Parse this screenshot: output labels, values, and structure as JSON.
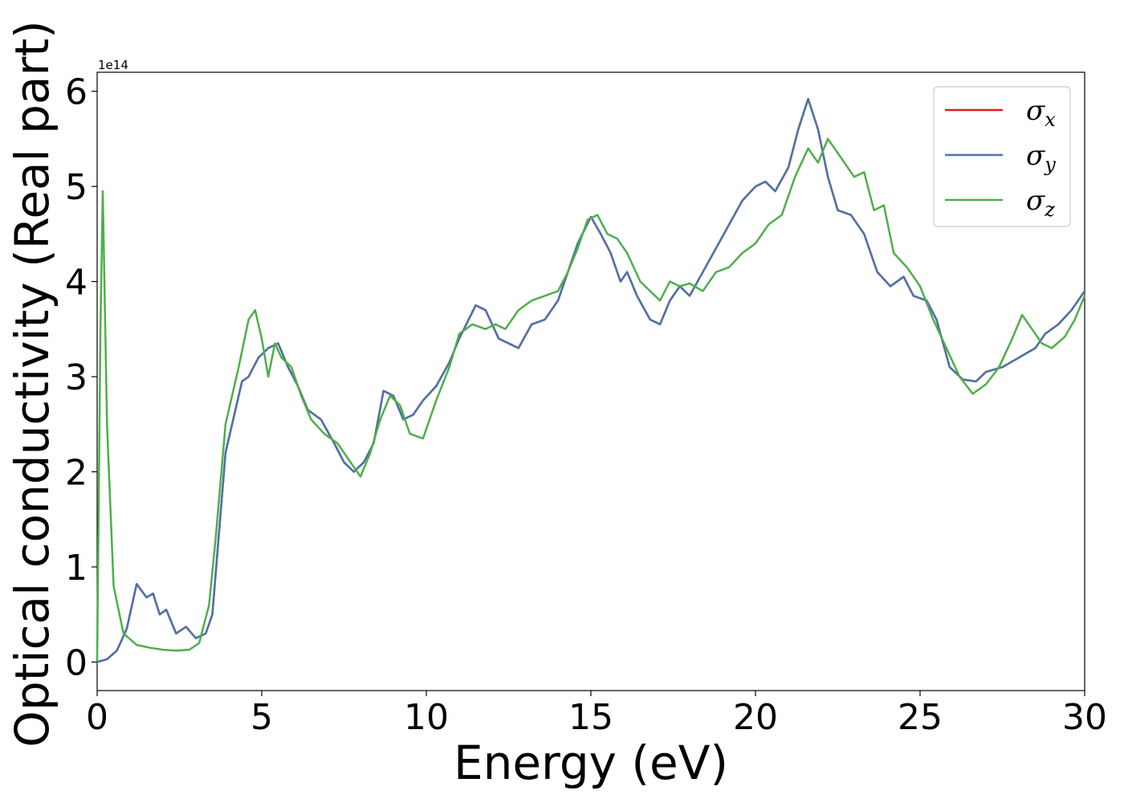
{
  "chart_data": {
    "type": "line",
    "title": "",
    "xlabel": "Energy (eV)",
    "ylabel": "Optical conductivity (Real part)",
    "y_offset_text": "1e14",
    "xlim": [
      0,
      30
    ],
    "ylim": [
      -0.3,
      6.2
    ],
    "x_ticks": [
      0,
      5,
      10,
      15,
      20,
      25,
      30
    ],
    "x_tick_labels": [
      "0",
      "5",
      "10",
      "15",
      "20",
      "25",
      "30"
    ],
    "y_ticks": [
      0,
      1,
      2,
      3,
      4,
      5,
      6
    ],
    "y_tick_labels": [
      "0",
      "1",
      "2",
      "3",
      "4",
      "5",
      "6"
    ],
    "grid": false,
    "legend_position": "top-right",
    "legend": [
      {
        "symbol": "σ",
        "subscript": "x",
        "color": "#e41a1c"
      },
      {
        "symbol": "σ",
        "subscript": "y",
        "color": "#4a74a8"
      },
      {
        "symbol": "σ",
        "subscript": "z",
        "color": "#4daf4a"
      }
    ],
    "series": [
      {
        "name": "σx",
        "color": "#e41a1c",
        "points": [
          [
            0,
            0
          ],
          [
            0.3,
            0.03
          ],
          [
            0.6,
            0.12
          ],
          [
            0.9,
            0.35
          ],
          [
            1.2,
            0.82
          ],
          [
            1.5,
            0.68
          ],
          [
            1.7,
            0.72
          ],
          [
            1.9,
            0.5
          ],
          [
            2.1,
            0.55
          ],
          [
            2.4,
            0.3
          ],
          [
            2.7,
            0.37
          ],
          [
            3.0,
            0.25
          ],
          [
            3.3,
            0.3
          ],
          [
            3.5,
            0.5
          ],
          [
            3.9,
            2.2
          ],
          [
            4.4,
            2.95
          ],
          [
            4.6,
            3.0
          ],
          [
            4.9,
            3.2
          ],
          [
            5.2,
            3.3
          ],
          [
            5.5,
            3.35
          ],
          [
            5.8,
            3.1
          ],
          [
            6.1,
            2.9
          ],
          [
            6.4,
            2.65
          ],
          [
            6.8,
            2.55
          ],
          [
            7.2,
            2.3
          ],
          [
            7.5,
            2.1
          ],
          [
            7.8,
            2.0
          ],
          [
            8.1,
            2.1
          ],
          [
            8.4,
            2.3
          ],
          [
            8.7,
            2.85
          ],
          [
            9.0,
            2.8
          ],
          [
            9.3,
            2.55
          ],
          [
            9.6,
            2.6
          ],
          [
            9.9,
            2.75
          ],
          [
            10.3,
            2.9
          ],
          [
            10.7,
            3.15
          ],
          [
            11.0,
            3.4
          ],
          [
            11.5,
            3.75
          ],
          [
            11.8,
            3.7
          ],
          [
            12.2,
            3.4
          ],
          [
            12.5,
            3.35
          ],
          [
            12.8,
            3.3
          ],
          [
            13.2,
            3.55
          ],
          [
            13.6,
            3.6
          ],
          [
            14.0,
            3.8
          ],
          [
            14.3,
            4.1
          ],
          [
            14.6,
            4.4
          ],
          [
            15.0,
            4.68
          ],
          [
            15.3,
            4.5
          ],
          [
            15.6,
            4.3
          ],
          [
            15.9,
            4.0
          ],
          [
            16.1,
            4.1
          ],
          [
            16.4,
            3.85
          ],
          [
            16.8,
            3.6
          ],
          [
            17.1,
            3.55
          ],
          [
            17.4,
            3.8
          ],
          [
            17.7,
            3.95
          ],
          [
            18.0,
            3.85
          ],
          [
            18.4,
            4.1
          ],
          [
            18.8,
            4.35
          ],
          [
            19.2,
            4.6
          ],
          [
            19.6,
            4.85
          ],
          [
            20.0,
            5.0
          ],
          [
            20.3,
            5.05
          ],
          [
            20.6,
            4.95
          ],
          [
            21.0,
            5.2
          ],
          [
            21.3,
            5.6
          ],
          [
            21.6,
            5.92
          ],
          [
            21.9,
            5.6
          ],
          [
            22.2,
            5.1
          ],
          [
            22.5,
            4.75
          ],
          [
            22.9,
            4.7
          ],
          [
            23.3,
            4.5
          ],
          [
            23.7,
            4.1
          ],
          [
            24.1,
            3.95
          ],
          [
            24.5,
            4.05
          ],
          [
            24.8,
            3.85
          ],
          [
            25.2,
            3.8
          ],
          [
            25.5,
            3.6
          ],
          [
            25.9,
            3.1
          ],
          [
            26.3,
            2.97
          ],
          [
            26.7,
            2.95
          ],
          [
            27.0,
            3.05
          ],
          [
            27.5,
            3.1
          ],
          [
            28.0,
            3.2
          ],
          [
            28.5,
            3.3
          ],
          [
            28.8,
            3.45
          ],
          [
            29.2,
            3.55
          ],
          [
            29.6,
            3.7
          ],
          [
            30.0,
            3.9
          ]
        ]
      },
      {
        "name": "σy",
        "color": "#4a74a8",
        "points": [
          [
            0,
            0
          ],
          [
            0.3,
            0.03
          ],
          [
            0.6,
            0.12
          ],
          [
            0.9,
            0.35
          ],
          [
            1.2,
            0.82
          ],
          [
            1.5,
            0.68
          ],
          [
            1.7,
            0.72
          ],
          [
            1.9,
            0.5
          ],
          [
            2.1,
            0.55
          ],
          [
            2.4,
            0.3
          ],
          [
            2.7,
            0.37
          ],
          [
            3.0,
            0.25
          ],
          [
            3.3,
            0.3
          ],
          [
            3.5,
            0.5
          ],
          [
            3.9,
            2.2
          ],
          [
            4.4,
            2.95
          ],
          [
            4.6,
            3.0
          ],
          [
            4.9,
            3.2
          ],
          [
            5.2,
            3.3
          ],
          [
            5.5,
            3.35
          ],
          [
            5.8,
            3.1
          ],
          [
            6.1,
            2.9
          ],
          [
            6.4,
            2.65
          ],
          [
            6.8,
            2.55
          ],
          [
            7.2,
            2.3
          ],
          [
            7.5,
            2.1
          ],
          [
            7.8,
            2.0
          ],
          [
            8.1,
            2.1
          ],
          [
            8.4,
            2.3
          ],
          [
            8.7,
            2.85
          ],
          [
            9.0,
            2.8
          ],
          [
            9.3,
            2.55
          ],
          [
            9.6,
            2.6
          ],
          [
            9.9,
            2.75
          ],
          [
            10.3,
            2.9
          ],
          [
            10.7,
            3.15
          ],
          [
            11.0,
            3.4
          ],
          [
            11.5,
            3.75
          ],
          [
            11.8,
            3.7
          ],
          [
            12.2,
            3.4
          ],
          [
            12.5,
            3.35
          ],
          [
            12.8,
            3.3
          ],
          [
            13.2,
            3.55
          ],
          [
            13.6,
            3.6
          ],
          [
            14.0,
            3.8
          ],
          [
            14.3,
            4.1
          ],
          [
            14.6,
            4.4
          ],
          [
            15.0,
            4.68
          ],
          [
            15.3,
            4.5
          ],
          [
            15.6,
            4.3
          ],
          [
            15.9,
            4.0
          ],
          [
            16.1,
            4.1
          ],
          [
            16.4,
            3.85
          ],
          [
            16.8,
            3.6
          ],
          [
            17.1,
            3.55
          ],
          [
            17.4,
            3.8
          ],
          [
            17.7,
            3.95
          ],
          [
            18.0,
            3.85
          ],
          [
            18.4,
            4.1
          ],
          [
            18.8,
            4.35
          ],
          [
            19.2,
            4.6
          ],
          [
            19.6,
            4.85
          ],
          [
            20.0,
            5.0
          ],
          [
            20.3,
            5.05
          ],
          [
            20.6,
            4.95
          ],
          [
            21.0,
            5.2
          ],
          [
            21.3,
            5.6
          ],
          [
            21.6,
            5.92
          ],
          [
            21.9,
            5.6
          ],
          [
            22.2,
            5.1
          ],
          [
            22.5,
            4.75
          ],
          [
            22.9,
            4.7
          ],
          [
            23.3,
            4.5
          ],
          [
            23.7,
            4.1
          ],
          [
            24.1,
            3.95
          ],
          [
            24.5,
            4.05
          ],
          [
            24.8,
            3.85
          ],
          [
            25.2,
            3.8
          ],
          [
            25.5,
            3.6
          ],
          [
            25.9,
            3.1
          ],
          [
            26.3,
            2.97
          ],
          [
            26.7,
            2.95
          ],
          [
            27.0,
            3.05
          ],
          [
            27.5,
            3.1
          ],
          [
            28.0,
            3.2
          ],
          [
            28.5,
            3.3
          ],
          [
            28.8,
            3.45
          ],
          [
            29.2,
            3.55
          ],
          [
            29.6,
            3.7
          ],
          [
            30.0,
            3.9
          ]
        ]
      },
      {
        "name": "σz",
        "color": "#4daf4a",
        "points": [
          [
            0,
            0
          ],
          [
            0.1,
            3.5
          ],
          [
            0.17,
            4.95
          ],
          [
            0.3,
            2.5
          ],
          [
            0.5,
            0.8
          ],
          [
            0.8,
            0.3
          ],
          [
            1.2,
            0.18
          ],
          [
            1.6,
            0.15
          ],
          [
            2.0,
            0.13
          ],
          [
            2.4,
            0.12
          ],
          [
            2.8,
            0.13
          ],
          [
            3.1,
            0.2
          ],
          [
            3.4,
            0.6
          ],
          [
            3.6,
            1.3
          ],
          [
            3.9,
            2.5
          ],
          [
            4.3,
            3.1
          ],
          [
            4.6,
            3.6
          ],
          [
            4.8,
            3.7
          ],
          [
            5.0,
            3.4
          ],
          [
            5.2,
            3.0
          ],
          [
            5.4,
            3.35
          ],
          [
            5.6,
            3.2
          ],
          [
            5.9,
            3.1
          ],
          [
            6.2,
            2.8
          ],
          [
            6.5,
            2.55
          ],
          [
            6.9,
            2.4
          ],
          [
            7.3,
            2.3
          ],
          [
            7.6,
            2.15
          ],
          [
            8.0,
            1.95
          ],
          [
            8.3,
            2.2
          ],
          [
            8.6,
            2.55
          ],
          [
            8.9,
            2.8
          ],
          [
            9.2,
            2.7
          ],
          [
            9.5,
            2.4
          ],
          [
            9.9,
            2.35
          ],
          [
            10.3,
            2.75
          ],
          [
            10.7,
            3.1
          ],
          [
            11.0,
            3.45
          ],
          [
            11.4,
            3.55
          ],
          [
            11.8,
            3.5
          ],
          [
            12.1,
            3.55
          ],
          [
            12.4,
            3.5
          ],
          [
            12.8,
            3.7
          ],
          [
            13.2,
            3.8
          ],
          [
            13.6,
            3.85
          ],
          [
            14.0,
            3.9
          ],
          [
            14.3,
            4.1
          ],
          [
            14.6,
            4.35
          ],
          [
            14.9,
            4.65
          ],
          [
            15.2,
            4.7
          ],
          [
            15.5,
            4.5
          ],
          [
            15.8,
            4.45
          ],
          [
            16.1,
            4.3
          ],
          [
            16.5,
            4.0
          ],
          [
            16.8,
            3.9
          ],
          [
            17.1,
            3.8
          ],
          [
            17.4,
            4.0
          ],
          [
            17.7,
            3.95
          ],
          [
            18.0,
            3.98
          ],
          [
            18.4,
            3.9
          ],
          [
            18.8,
            4.1
          ],
          [
            19.2,
            4.15
          ],
          [
            19.6,
            4.3
          ],
          [
            20.0,
            4.4
          ],
          [
            20.4,
            4.6
          ],
          [
            20.8,
            4.7
          ],
          [
            21.2,
            5.1
          ],
          [
            21.6,
            5.4
          ],
          [
            21.9,
            5.25
          ],
          [
            22.2,
            5.5
          ],
          [
            22.6,
            5.3
          ],
          [
            23.0,
            5.1
          ],
          [
            23.3,
            5.15
          ],
          [
            23.6,
            4.75
          ],
          [
            23.9,
            4.8
          ],
          [
            24.2,
            4.3
          ],
          [
            24.6,
            4.15
          ],
          [
            25.0,
            3.95
          ],
          [
            25.4,
            3.6
          ],
          [
            25.8,
            3.3
          ],
          [
            26.2,
            3.0
          ],
          [
            26.6,
            2.82
          ],
          [
            27.0,
            2.92
          ],
          [
            27.4,
            3.1
          ],
          [
            27.8,
            3.4
          ],
          [
            28.1,
            3.65
          ],
          [
            28.4,
            3.5
          ],
          [
            28.7,
            3.35
          ],
          [
            29.0,
            3.3
          ],
          [
            29.4,
            3.42
          ],
          [
            29.7,
            3.6
          ],
          [
            30.0,
            3.85
          ]
        ]
      }
    ]
  }
}
